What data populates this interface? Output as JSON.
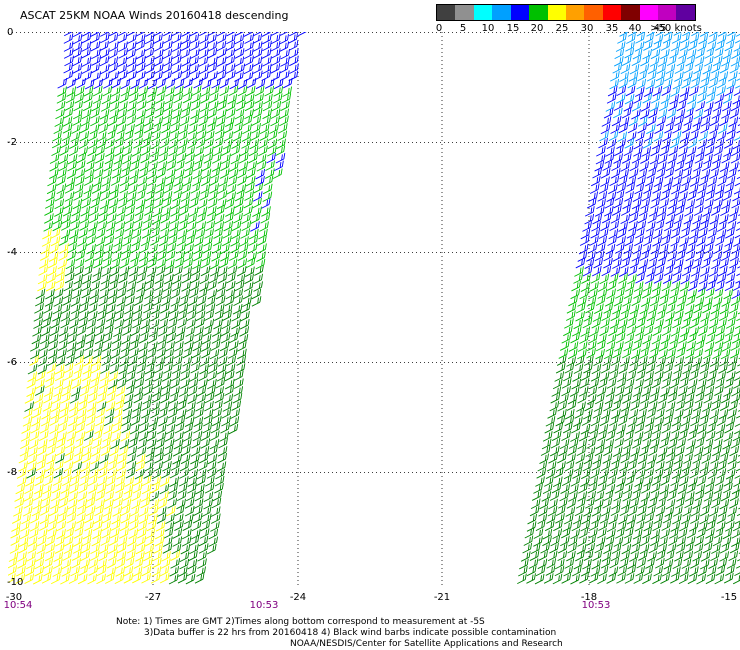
{
  "title": "ASCAT 25KM NOAA Winds 20160418 descending",
  "legend": {
    "colors": [
      "#404040",
      "#909090",
      "#00ffff",
      "#00a0ff",
      "#0000ff",
      "#00c000",
      "#ffff00",
      "#ffa000",
      "#ff6000",
      "#ff0000",
      "#800000",
      "#ff00ff",
      "#c000c0",
      "#6000a0"
    ],
    "labels": [
      "0",
      "5",
      "10",
      "15",
      "20",
      "25",
      "30",
      "35",
      "40",
      "45",
      ">50 knots"
    ]
  },
  "axes": {
    "lat_ticks": [
      "0",
      "-2",
      "-4",
      "-6",
      "-8",
      "-10"
    ],
    "lon_ticks": [
      "-30",
      "-27",
      "-24",
      "-21",
      "-18",
      "-15"
    ],
    "grid": "dotted"
  },
  "times": [
    "10:54",
    "10:53",
    "10:53"
  ],
  "notes": [
    "Note: 1) Times are GMT 2)Times along bottom correspond to measurement at -5S",
    "3)Data buffer is 22 hrs from 20160418 4) Black wind barbs indicate possible contamination",
    "NOAA/NESDIS/Center for Satellite Applications and Research"
  ],
  "swaths": [
    {
      "name": "west-swath",
      "wind_bands": [
        {
          "lat_range": [
            0,
            -1
          ],
          "color": "#0000ff",
          "knots": "15-20"
        },
        {
          "lat_range": [
            -1,
            -5
          ],
          "color": "#00c000",
          "knots": "20-25"
        },
        {
          "lat_range": [
            -5,
            -10
          ],
          "color": "#008000",
          "knots": "20-25"
        },
        {
          "area": "southwest corner",
          "color": "#ffff00",
          "knots": "25-30"
        }
      ]
    },
    {
      "name": "east-swath",
      "wind_bands": [
        {
          "lat_range": [
            0,
            -1
          ],
          "color": "#00a0ff",
          "knots": "15"
        },
        {
          "lat_range": [
            -1,
            -4.5
          ],
          "color": "#0000ff",
          "knots": "15-20"
        },
        {
          "lat_range": [
            -4.5,
            -6
          ],
          "color": "#00c000",
          "knots": "20-25"
        },
        {
          "lat_range": [
            -6,
            -10
          ],
          "color": "#008000",
          "knots": "20-25"
        }
      ]
    }
  ]
}
